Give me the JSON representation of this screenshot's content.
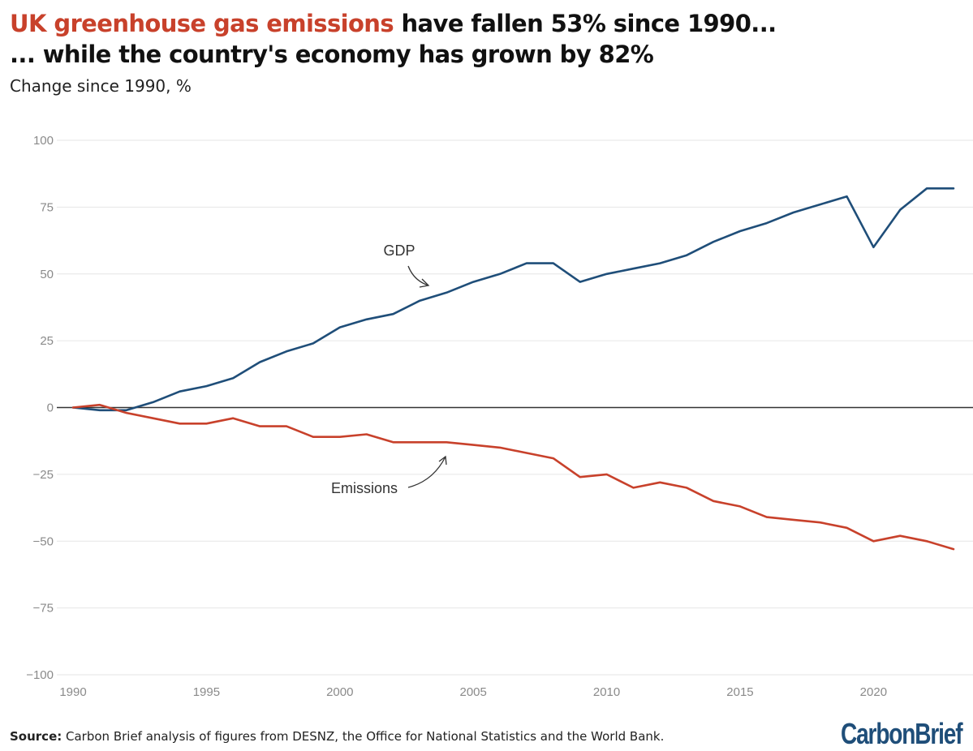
{
  "title": {
    "highlight": "UK greenhouse gas emissions",
    "rest_line1": " have fallen 53% since 1990...",
    "line2": "... while the country's economy has grown by 82%"
  },
  "subtitle": "Change since 1990, %",
  "source": {
    "label": "Source:",
    "text": " Carbon Brief analysis of figures from DESNZ, the Office for National Statistics and the World Bank."
  },
  "logo": "CarbonBrief",
  "colors": {
    "gdp": "#1f4e79",
    "emissions": "#c8412b",
    "title_accent": "#c8412b",
    "zero_line": "#333333",
    "grid": "#e6e6e6",
    "tick_text": "#8a8a8a"
  },
  "chart_data": {
    "type": "line",
    "title": "UK greenhouse gas emissions have fallen 53% since 1990... ... while the country's economy has grown by 82%",
    "ylabel": "Change since 1990, %",
    "xlabel": "",
    "xlim": [
      1990,
      2023
    ],
    "ylim": [
      -100,
      100
    ],
    "x_ticks": [
      1990,
      1995,
      2000,
      2005,
      2010,
      2015,
      2020
    ],
    "y_ticks": [
      100,
      75,
      50,
      25,
      0,
      -25,
      -50,
      -75,
      -100
    ],
    "y_tick_labels": [
      "100",
      "75",
      "50",
      "25",
      "0",
      "−25",
      "−50",
      "−75",
      "−100"
    ],
    "grid": "horizontal",
    "x": [
      1990,
      1991,
      1992,
      1993,
      1994,
      1995,
      1996,
      1997,
      1998,
      1999,
      2000,
      2001,
      2002,
      2003,
      2004,
      2005,
      2006,
      2007,
      2008,
      2009,
      2010,
      2011,
      2012,
      2013,
      2014,
      2015,
      2016,
      2017,
      2018,
      2019,
      2020,
      2021,
      2022,
      2023
    ],
    "series": [
      {
        "name": "GDP",
        "values": [
          0,
          -1,
          -1,
          2,
          6,
          8,
          11,
          17,
          21,
          24,
          30,
          33,
          35,
          40,
          43,
          47,
          50,
          54,
          54,
          47,
          50,
          52,
          54,
          57,
          62,
          66,
          69,
          73,
          76,
          79,
          60,
          74,
          82,
          82
        ]
      },
      {
        "name": "Emissions",
        "values": [
          0,
          1,
          -2,
          -4,
          -6,
          -6,
          -4,
          -7,
          -7,
          -11,
          -11,
          -10,
          -13,
          -13,
          -13,
          -14,
          -15,
          -17,
          -19,
          -26,
          -25,
          -30,
          -28,
          -30,
          -35,
          -37,
          -41,
          -42,
          -43,
          -45,
          -50,
          -48,
          -50,
          -53
        ]
      }
    ],
    "annotations": [
      {
        "text": "GDP",
        "series": "GDP"
      },
      {
        "text": "Emissions",
        "series": "Emissions"
      }
    ]
  }
}
